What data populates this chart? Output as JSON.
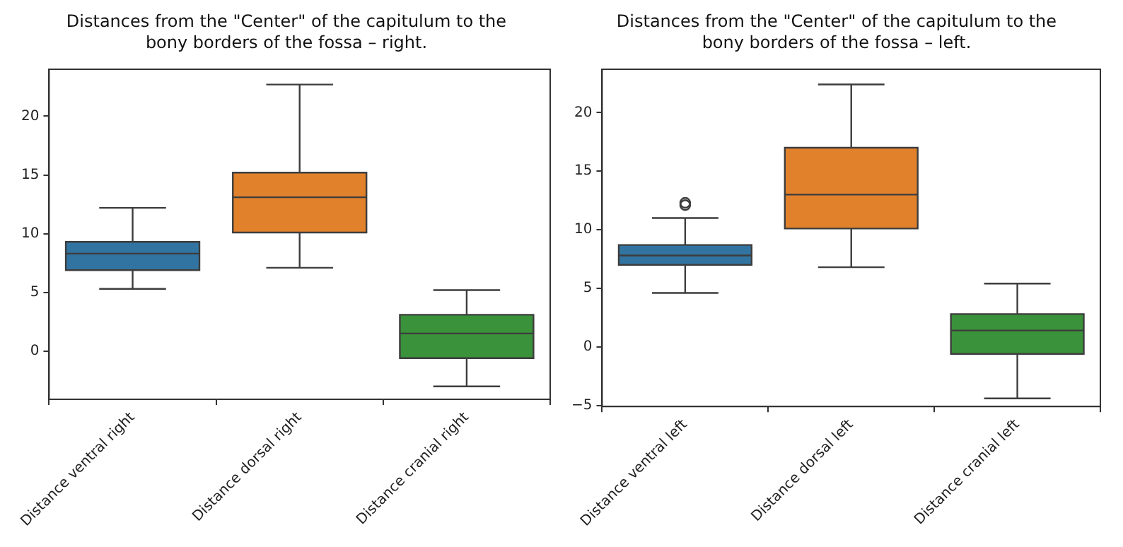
{
  "chart_data": [
    {
      "type": "box",
      "title": "Distances from the \"Center\" of the capitulum to the bony borders of the fossa – right.",
      "categories": [
        "Distance ventral right",
        "Distance dorsal right",
        "Distance cranial right"
      ],
      "colors": [
        "#3274a1",
        "#e1812c",
        "#3a923a"
      ],
      "boxes": [
        {
          "low": 5.3,
          "q1": 6.9,
          "median": 8.3,
          "q3": 9.3,
          "high": 12.2
        },
        {
          "low": 7.1,
          "q1": 10.1,
          "median": 13.1,
          "q3": 15.2,
          "high": 22.7
        },
        {
          "low": -3.0,
          "q1": -0.6,
          "median": 1.5,
          "q3": 3.1,
          "high": 5.2
        }
      ],
      "ylim": [
        -4.1,
        24.0
      ],
      "yticks": [
        0,
        5,
        10,
        15,
        20
      ],
      "grid": false
    },
    {
      "type": "box",
      "title": "Distances from the \"Center\" of the capitulum to the bony borders of the fossa – left.",
      "categories": [
        "Distance ventral left",
        "Distance dorsal left",
        "Distance cranial left"
      ],
      "colors": [
        "#3274a1",
        "#e1812c",
        "#3a923a"
      ],
      "boxes": [
        {
          "low": 4.6,
          "q1": 7.0,
          "median": 7.8,
          "q3": 8.7,
          "high": 11.0,
          "outliers": [
            12.1,
            12.3
          ]
        },
        {
          "low": 6.8,
          "q1": 10.1,
          "median": 13.0,
          "q3": 17.0,
          "high": 22.4
        },
        {
          "low": -4.4,
          "q1": -0.6,
          "median": 1.4,
          "q3": 2.8,
          "high": 5.4
        }
      ],
      "ylim": [
        -5.1,
        23.7
      ],
      "yticks": [
        -5,
        0,
        5,
        10,
        15,
        20
      ],
      "grid": false
    }
  ]
}
